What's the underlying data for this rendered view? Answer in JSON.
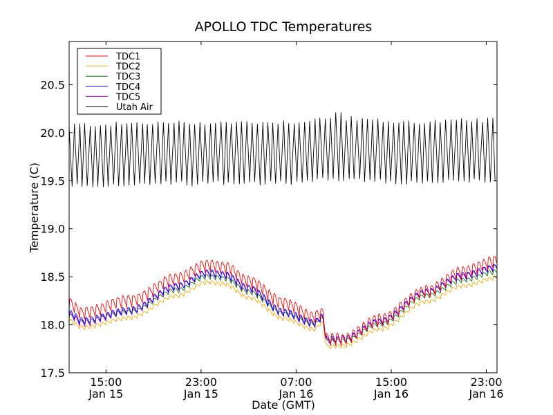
{
  "chart_data": {
    "type": "line",
    "title": "APOLLO TDC Temperatures",
    "xlabel": "Date (GMT)",
    "ylabel": "Temperature (C)",
    "x_units": "hours since Jan 15 00:00 GMT",
    "xlim": [
      11.9,
      47.9
    ],
    "ylim": [
      17.5,
      20.95
    ],
    "grid": false,
    "legend_position": "top-left",
    "x_ticks": [
      {
        "value": 15,
        "label_time": "15:00",
        "label_date": "Jan 15"
      },
      {
        "value": 23,
        "label_time": "23:00",
        "label_date": "Jan 15"
      },
      {
        "value": 31,
        "label_time": "07:00",
        "label_date": "Jan 16"
      },
      {
        "value": 39,
        "label_time": "15:00",
        "label_date": "Jan 16"
      },
      {
        "value": 47,
        "label_time": "23:00",
        "label_date": "Jan 16"
      }
    ],
    "y_ticks": [
      {
        "value": 17.5,
        "label": "17.5"
      },
      {
        "value": 18.0,
        "label": "18.0"
      },
      {
        "value": 18.5,
        "label": "18.5"
      },
      {
        "value": 19.0,
        "label": "19.0"
      },
      {
        "value": 19.5,
        "label": "19.5"
      },
      {
        "value": 20.0,
        "label": "20.0"
      },
      {
        "value": 20.5,
        "label": "20.5"
      }
    ],
    "oscillation_period_hours": 0.44,
    "series": [
      {
        "name": "TDC1",
        "color": "#ff0000",
        "baseline": {
          "x": [
            11.9,
            13.0,
            17.0,
            21.0,
            23.5,
            25.0,
            27.0,
            30.0,
            32.5,
            33.2,
            33.6,
            35.0,
            38.0,
            42.0,
            45.0,
            47.9
          ],
          "y": [
            18.22,
            18.12,
            18.25,
            18.48,
            18.62,
            18.6,
            18.45,
            18.22,
            18.08,
            18.12,
            17.85,
            17.85,
            18.05,
            18.35,
            18.55,
            18.66
          ]
        },
        "sawtooth_amplitude": 0.12
      },
      {
        "name": "TDC2",
        "color": "#ffa500",
        "baseline": {
          "x": [
            11.9,
            13.0,
            17.0,
            21.0,
            23.5,
            25.0,
            27.0,
            30.0,
            32.5,
            33.2,
            33.6,
            35.0,
            38.0,
            42.0,
            45.0,
            47.9
          ],
          "y": [
            18.04,
            17.97,
            18.07,
            18.3,
            18.44,
            18.42,
            18.28,
            18.06,
            17.95,
            18.02,
            17.77,
            17.78,
            17.95,
            18.24,
            18.4,
            18.49
          ]
        },
        "sawtooth_amplitude": 0.04
      },
      {
        "name": "TDC3",
        "color": "#008000",
        "baseline": {
          "x": [
            11.9,
            13.0,
            17.0,
            21.0,
            23.5,
            25.0,
            27.0,
            30.0,
            32.5,
            33.2,
            33.6,
            35.0,
            38.0,
            42.0,
            45.0,
            47.9
          ],
          "y": [
            18.09,
            18.03,
            18.13,
            18.36,
            18.5,
            18.48,
            18.34,
            18.11,
            18.0,
            18.06,
            17.82,
            17.83,
            18.0,
            18.3,
            18.46,
            18.55
          ]
        },
        "sawtooth_amplitude": 0.05
      },
      {
        "name": "TDC4",
        "color": "#0000ff",
        "baseline": {
          "x": [
            11.9,
            13.0,
            17.0,
            21.0,
            23.5,
            25.0,
            27.0,
            30.0,
            32.5,
            33.2,
            33.6,
            35.0,
            38.0,
            42.0,
            45.0,
            47.9
          ],
          "y": [
            18.12,
            18.04,
            18.15,
            18.4,
            18.54,
            18.52,
            18.38,
            18.13,
            18.02,
            18.08,
            17.84,
            17.85,
            18.03,
            18.34,
            18.51,
            18.6
          ]
        },
        "sawtooth_amplitude": 0.07
      },
      {
        "name": "TDC5",
        "color": "#bf00bf",
        "baseline": {
          "x": [
            11.9,
            13.0,
            17.0,
            21.0,
            23.5,
            25.0,
            27.0,
            30.0,
            32.5,
            33.2,
            33.6,
            35.0,
            38.0,
            42.0,
            45.0,
            47.9
          ],
          "y": [
            18.1,
            18.02,
            18.14,
            18.39,
            18.53,
            18.51,
            18.37,
            18.12,
            18.01,
            18.07,
            17.82,
            17.84,
            18.02,
            18.33,
            18.5,
            18.59
          ]
        },
        "sawtooth_amplitude": 0.07
      },
      {
        "name": "Utah Air",
        "color": "#000000",
        "baseline": {
          "x": [
            11.9,
            20.0,
            30.0,
            34.5,
            40.0,
            47.9
          ],
          "y": [
            19.77,
            19.79,
            19.8,
            19.84,
            19.8,
            19.82
          ]
        },
        "oscillation_min": 19.47,
        "oscillation_max": 20.1,
        "max_peak": 20.21
      }
    ]
  }
}
